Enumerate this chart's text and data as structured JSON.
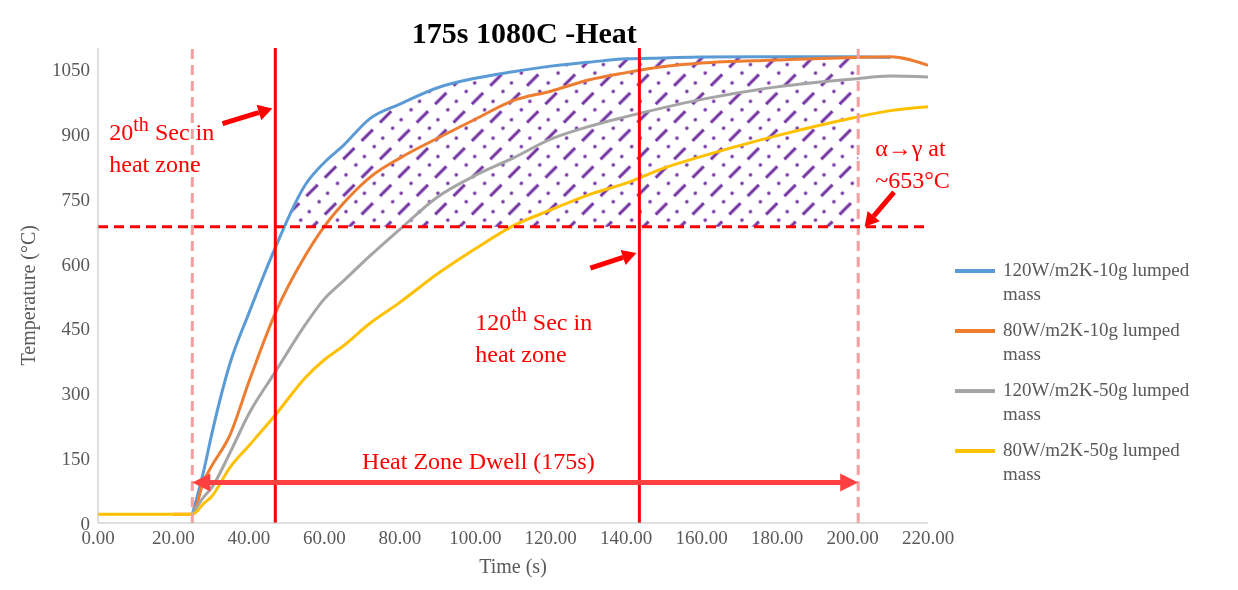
{
  "chart_data": {
    "type": "line",
    "title": "175s 1080C -Heat",
    "xlabel": "Time (s)",
    "ylabel": "Temperature (°C)",
    "x": [
      0,
      10,
      20,
      25,
      28,
      30,
      35,
      40,
      47,
      55,
      60,
      65,
      72,
      80,
      90,
      100,
      110,
      120,
      130,
      140,
      150,
      160,
      180,
      200,
      210,
      220
    ],
    "series": [
      {
        "name": "120W/m2K-10g lumped mass",
        "color": "#5b9bd5",
        "values": [
          null,
          null,
          null,
          20,
          120,
          200,
          370,
          486,
          638,
          784,
          835,
          874,
          936,
          970,
          1008,
          1030,
          1045,
          1058,
          1067,
          1075,
          1077,
          1079,
          1080,
          1080,
          1078,
          null
        ]
      },
      {
        "name": "80W/m2K-10g lumped mass",
        "color": "#ed7d31",
        "values": [
          null,
          null,
          20,
          20,
          97,
          130,
          204,
          327,
          486,
          620,
          687,
          740,
          800,
          845,
          891,
          935,
          978,
          1000,
          1026,
          1043,
          1057,
          1065,
          1072,
          1078,
          1080,
          1060
        ]
      },
      {
        "name": "120W/m2K-50g lumped mass",
        "color": "#a5a5a5",
        "values": [
          null,
          null,
          null,
          20,
          60,
          80,
          163,
          253,
          350,
          460,
          519,
          560,
          618,
          680,
          755,
          805,
          845,
          889,
          918,
          941,
          962,
          981,
          1010,
          1028,
          1035,
          1033
        ]
      },
      {
        "name": "80W/m2K-50g lumped mass",
        "color": "#ffc000",
        "values": [
          20,
          20,
          20,
          20,
          45,
          60,
          129,
          179,
          250,
          337,
          378,
          410,
          462,
          511,
          577,
          635,
          688,
          725,
          760,
          787,
          822,
          849,
          897,
          938,
          955,
          964
        ]
      }
    ],
    "xlim": [
      0,
      220
    ],
    "xticks": [
      {
        "value": 0,
        "label": "0.00"
      },
      {
        "value": 20,
        "label": "20.00"
      },
      {
        "value": 40,
        "label": "40.00"
      },
      {
        "value": 60,
        "label": "60.00"
      },
      {
        "value": 80,
        "label": "80.00"
      },
      {
        "value": 100,
        "label": "100.00"
      },
      {
        "value": 120,
        "label": "120.00"
      },
      {
        "value": 140,
        "label": "140.00"
      },
      {
        "value": 160,
        "label": "160.00"
      },
      {
        "value": 180,
        "label": "180.00"
      },
      {
        "value": 200,
        "label": "200.00"
      },
      {
        "value": 220,
        "label": "220.00"
      }
    ],
    "ylim": [
      0,
      1100
    ],
    "yticks": [
      0,
      150,
      300,
      450,
      600,
      750,
      900,
      1050
    ],
    "ref_lines": [
      {
        "axis": "x",
        "value": 25,
        "color": "#f4a0a0",
        "line_style": "dashed"
      },
      {
        "axis": "x",
        "value": 201.5,
        "color": "#f4a0a0",
        "line_style": "dashed"
      },
      {
        "axis": "x",
        "value": 47,
        "color": "#ff0000",
        "line_style": "solid"
      },
      {
        "axis": "x",
        "value": 143.5,
        "color": "#ff0000",
        "line_style": "solid"
      },
      {
        "axis": "y",
        "value": 686,
        "color": "#ff0000",
        "line_style": "dashed"
      }
    ],
    "annotations": [
      {
        "text": "20$^{th}$ Sec in heat zone",
        "x": 47,
        "y": 960
      },
      {
        "text": "120$^{th}$ Sec in heat zone",
        "x": 143.5,
        "y": 625
      },
      {
        "text": "α→γ at ~653°C",
        "x": 204,
        "y": 686
      },
      "Heat Zone Dwell (175s)"
    ],
    "legend": "right",
    "grid": false,
    "marker": "none",
    "line_style": "solid"
  }
}
